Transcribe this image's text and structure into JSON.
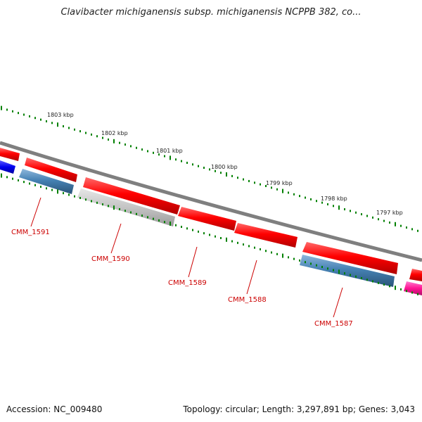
{
  "title": "Clavibacter michiganensis subsp. michiganensis NCPPB 382, co...",
  "ruler": {
    "labels": [
      "1803 kbp",
      "1802 kbp",
      "1801 kbp",
      "1800 kbp",
      "1799 kbp",
      "1798 kbp",
      "1797 kbp"
    ],
    "tick_color": "#008000"
  },
  "backbone_color": "#7f7f7f",
  "genes": [
    {
      "label": "CMM_1591",
      "color": "#4682b4",
      "strand": "reverse"
    },
    {
      "label": "CMM_1590",
      "color": "#bfbfbf",
      "strand": "reverse"
    },
    {
      "label": "CMM_1589",
      "color": "#ff0000",
      "strand": "forward"
    },
    {
      "label": "CMM_1588",
      "color": "#ff0000",
      "strand": "forward"
    },
    {
      "label": "CMM_1587",
      "color": "#4682b4",
      "strand": "reverse"
    }
  ],
  "label_color": "#cc0000",
  "footer": {
    "accession": "Accession: NC_009480",
    "summary": "Topology: circular; Length: 3,297,891 bp; Genes: 3,043"
  }
}
